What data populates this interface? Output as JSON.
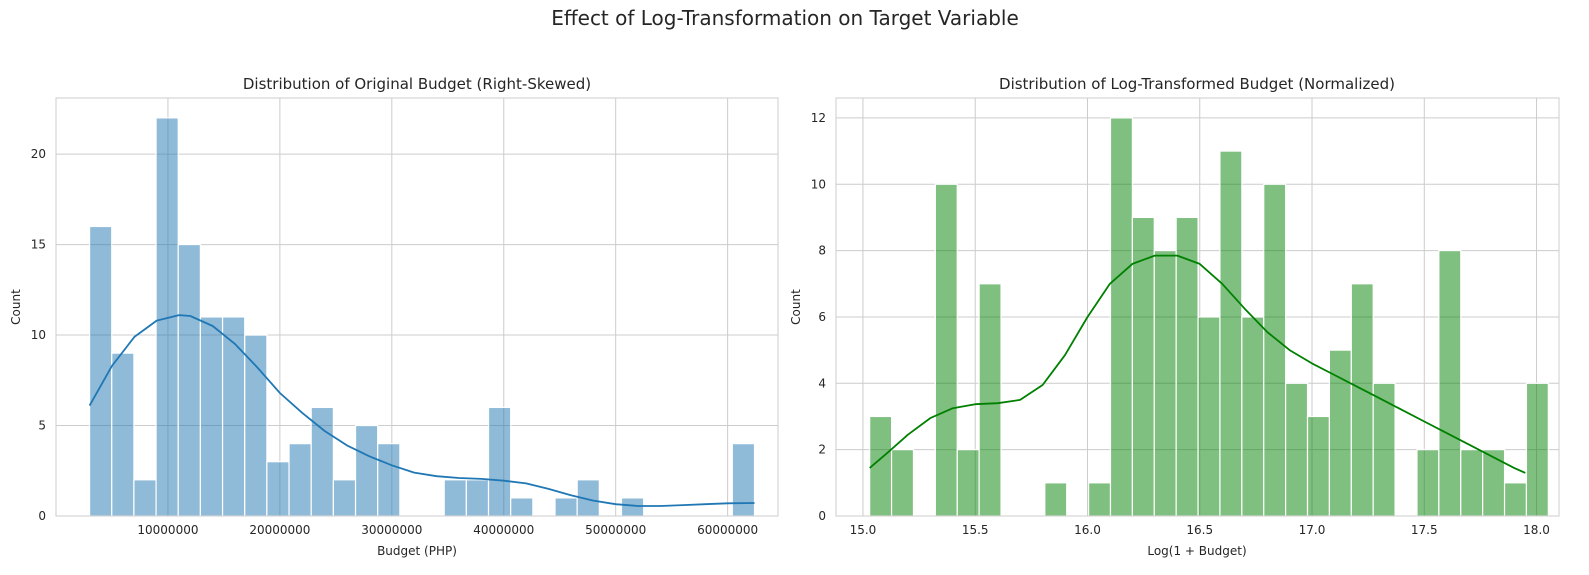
{
  "figure": {
    "suptitle": "Effect of Log-Transformation on Target Variable"
  },
  "chart_data": [
    {
      "type": "bar",
      "title": "Distribution of Original Budget (Right-Skewed)",
      "xlabel": "Budget (PHP)",
      "ylabel": "Count",
      "xlim": [
        0,
        64500000
      ],
      "ylim": [
        0,
        23.1
      ],
      "xticks": [
        10000000,
        20000000,
        30000000,
        40000000,
        50000000,
        60000000
      ],
      "xtick_labels": [
        "10000000",
        "20000000",
        "30000000",
        "40000000",
        "50000000",
        "60000000"
      ],
      "yticks": [
        0,
        5,
        10,
        15,
        20
      ],
      "ytick_labels": [
        "0",
        "5",
        "10",
        "15",
        "20"
      ],
      "grid": true,
      "bar_color": "#1f77b4",
      "bar_alpha": 0.5,
      "kde_color": "#1f77b4",
      "bin_start": 3000000,
      "bin_width": 1980000,
      "counts": [
        16,
        9,
        2,
        22,
        15,
        11,
        11,
        10,
        3,
        4,
        6,
        2,
        5,
        4,
        0,
        0,
        2,
        2,
        6,
        1,
        0,
        1,
        2,
        0,
        1,
        0,
        0,
        0,
        0,
        4
      ],
      "kde": {
        "x": [
          3000000,
          5000000,
          7000000,
          9000000,
          11000000,
          12000000,
          14000000,
          16000000,
          18000000,
          20000000,
          22000000,
          24000000,
          26000000,
          28000000,
          30000000,
          32000000,
          34000000,
          36000000,
          38000000,
          40000000,
          42000000,
          44000000,
          46000000,
          48000000,
          50000000,
          52000000,
          54000000,
          56000000,
          58000000,
          60000000,
          62400000
        ],
        "y": [
          6.1,
          8.3,
          9.9,
          10.8,
          11.1,
          11.05,
          10.5,
          9.5,
          8.2,
          6.8,
          5.7,
          4.7,
          3.9,
          3.3,
          2.8,
          2.4,
          2.2,
          2.1,
          2.05,
          1.95,
          1.8,
          1.5,
          1.15,
          0.85,
          0.65,
          0.55,
          0.55,
          0.6,
          0.65,
          0.7,
          0.72
        ]
      }
    },
    {
      "type": "bar",
      "title": "Distribution of Log-Transformed Budget (Normalized)",
      "xlabel": "Log(1 + Budget)",
      "ylabel": "Count",
      "xlim": [
        14.88,
        18.1
      ],
      "ylim": [
        0,
        12.6
      ],
      "xticks": [
        15.0,
        15.5,
        16.0,
        16.5,
        17.0,
        17.5,
        18.0
      ],
      "xtick_labels": [
        "15.0",
        "15.5",
        "16.0",
        "16.5",
        "17.0",
        "17.5",
        "18.0"
      ],
      "yticks": [
        0,
        2,
        4,
        6,
        8,
        10,
        12
      ],
      "ytick_labels": [
        "0",
        "2",
        "4",
        "6",
        "8",
        "10",
        "12"
      ],
      "grid": true,
      "bar_color": "#008000",
      "bar_alpha": 0.5,
      "kde_color": "#008000",
      "bin_start": 15.03,
      "bin_width": 0.0975,
      "counts": [
        3,
        2,
        0,
        10,
        2,
        7,
        0,
        0,
        1,
        0,
        1,
        12,
        9,
        8,
        9,
        6,
        11,
        6,
        10,
        4,
        3,
        5,
        7,
        4,
        0,
        2,
        8,
        2,
        2,
        1,
        4
      ],
      "kde": {
        "x": [
          15.03,
          15.1,
          15.2,
          15.3,
          15.4,
          15.5,
          15.6,
          15.7,
          15.8,
          15.9,
          16.0,
          16.1,
          16.2,
          16.3,
          16.4,
          16.5,
          16.6,
          16.7,
          16.8,
          16.9,
          17.0,
          17.1,
          17.2,
          17.3,
          17.4,
          17.5,
          17.6,
          17.7,
          17.8,
          17.9,
          17.95
        ],
        "y": [
          1.45,
          1.85,
          2.45,
          2.95,
          3.25,
          3.37,
          3.4,
          3.5,
          3.95,
          4.85,
          6.0,
          7.0,
          7.6,
          7.85,
          7.85,
          7.6,
          7.0,
          6.25,
          5.55,
          5.0,
          4.6,
          4.25,
          3.9,
          3.55,
          3.2,
          2.85,
          2.5,
          2.15,
          1.8,
          1.45,
          1.3
        ]
      }
    }
  ]
}
